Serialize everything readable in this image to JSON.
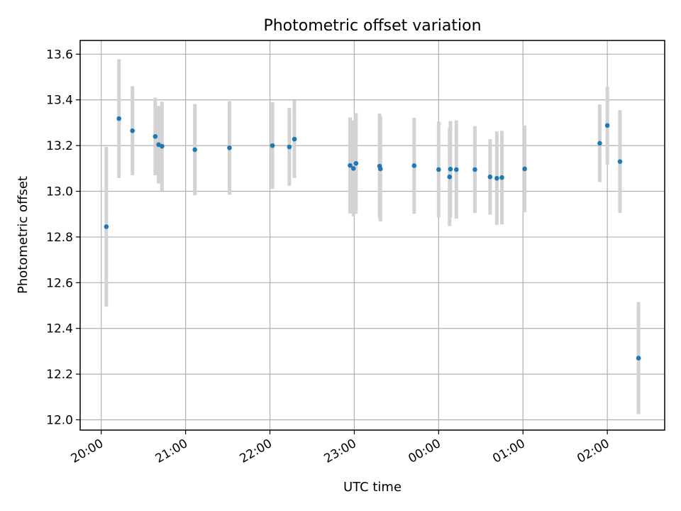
{
  "chart_data": {
    "type": "scatter",
    "title": "Photometric offset variation",
    "xlabel": "UTC time",
    "ylabel": "Photometric offset",
    "grid": true,
    "x_ticks": [
      "20:00",
      "21:00",
      "22:00",
      "23:00",
      "00:00",
      "01:00",
      "02:00"
    ],
    "x_tick_hours": [
      0,
      1,
      2,
      3,
      4,
      5,
      6
    ],
    "xlim": [
      -0.25,
      6.68
    ],
    "y_ticks": [
      "12.0",
      "12.2",
      "12.4",
      "12.6",
      "12.8",
      "13.0",
      "13.2",
      "13.4",
      "13.6"
    ],
    "y_tick_values": [
      12.0,
      12.2,
      12.4,
      12.6,
      12.8,
      13.0,
      13.2,
      13.4,
      13.6
    ],
    "ylim": [
      11.955,
      13.66
    ],
    "colors": {
      "point": "#1f77b4",
      "errorbar": "#d3d3d3"
    },
    "series": [
      {
        "points": [
          {
            "t": 0.06,
            "y": 12.845,
            "err": 0.35
          },
          {
            "t": 0.21,
            "y": 13.318,
            "err": 0.26
          },
          {
            "t": 0.37,
            "y": 13.265,
            "err": 0.195
          },
          {
            "t": 0.64,
            "y": 13.24,
            "err": 0.17
          },
          {
            "t": 0.68,
            "y": 13.204,
            "err": 0.17
          },
          {
            "t": 0.72,
            "y": 13.197,
            "err": 0.195
          },
          {
            "t": 1.11,
            "y": 13.182,
            "err": 0.2
          },
          {
            "t": 1.52,
            "y": 13.19,
            "err": 0.205
          },
          {
            "t": 2.03,
            "y": 13.2,
            "err": 0.19
          },
          {
            "t": 2.23,
            "y": 13.194,
            "err": 0.17
          },
          {
            "t": 2.29,
            "y": 13.228,
            "err": 0.17
          },
          {
            "t": 2.95,
            "y": 13.113,
            "err": 0.21
          },
          {
            "t": 2.99,
            "y": 13.1,
            "err": 0.21
          },
          {
            "t": 3.02,
            "y": 13.122,
            "err": 0.22
          },
          {
            "t": 3.3,
            "y": 13.11,
            "err": 0.23
          },
          {
            "t": 3.31,
            "y": 13.098,
            "err": 0.23
          },
          {
            "t": 3.71,
            "y": 13.112,
            "err": 0.21
          },
          {
            "t": 4.0,
            "y": 13.095,
            "err": 0.21
          },
          {
            "t": 4.13,
            "y": 13.063,
            "err": 0.215
          },
          {
            "t": 4.14,
            "y": 13.097,
            "err": 0.21
          },
          {
            "t": 4.21,
            "y": 13.095,
            "err": 0.215
          },
          {
            "t": 4.43,
            "y": 13.095,
            "err": 0.19
          },
          {
            "t": 4.61,
            "y": 13.063,
            "err": 0.165
          },
          {
            "t": 4.69,
            "y": 13.057,
            "err": 0.205
          },
          {
            "t": 4.75,
            "y": 13.06,
            "err": 0.205
          },
          {
            "t": 5.02,
            "y": 13.098,
            "err": 0.19
          },
          {
            "t": 5.91,
            "y": 13.21,
            "err": 0.17
          },
          {
            "t": 6.0,
            "y": 13.288,
            "err": 0.17
          },
          {
            "t": 6.15,
            "y": 13.13,
            "err": 0.225
          },
          {
            "t": 6.37,
            "y": 12.27,
            "err": 0.245
          }
        ]
      }
    ]
  }
}
